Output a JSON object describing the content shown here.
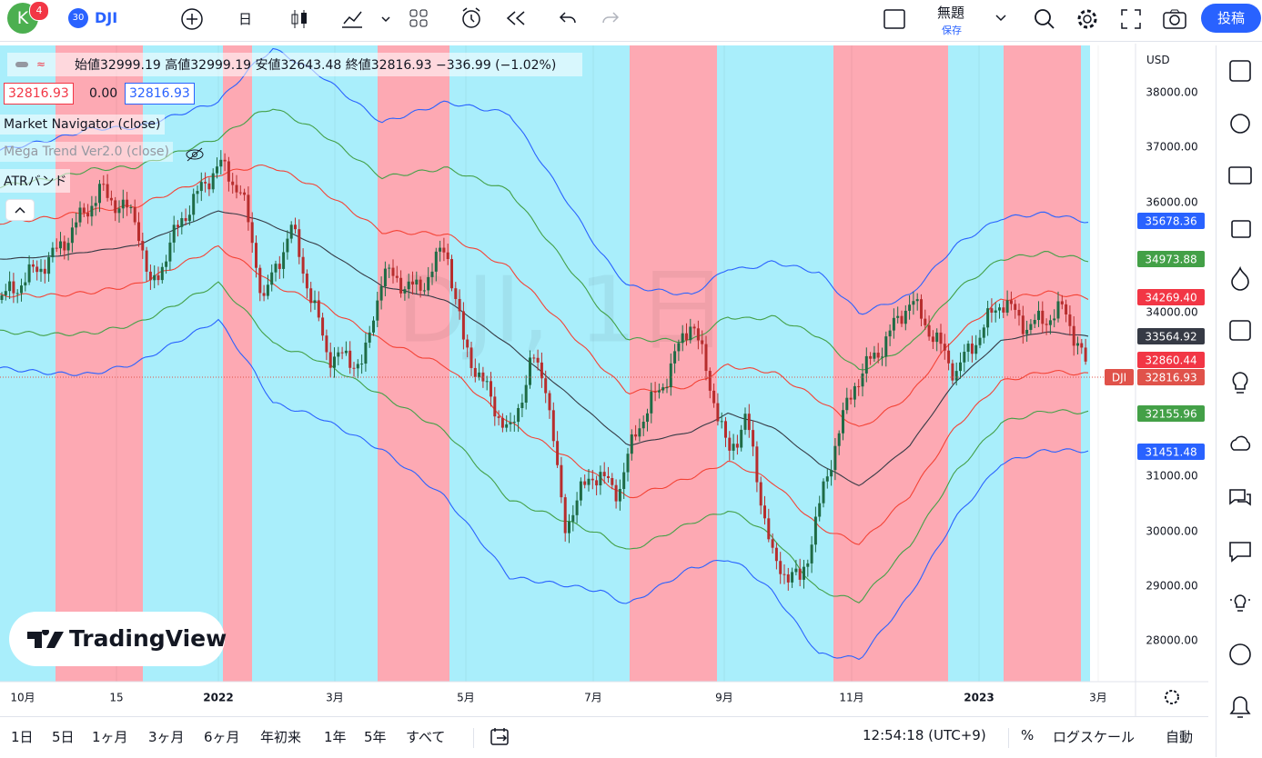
{
  "toolbar": {
    "avatar": "K",
    "badge": "4",
    "symbol_badge": "30",
    "symbol": "DJI",
    "interval": "日",
    "layout_name": "無題",
    "save": "保存",
    "publish": "投稿"
  },
  "legend": {
    "ohlc": "始値32999.19 高値32999.19 安値32643.48 終値32816.93 −336.99 (−1.02%)",
    "values": [
      "32816.93",
      "0.00",
      "32816.93"
    ],
    "indicators": [
      "Market Navigator (close)",
      "Mega Trend Ver2.0 (close)",
      "ATRバンド"
    ]
  },
  "watermark": "DJI, 1日",
  "currency": "USD",
  "price_axis": [
    "38000.00",
    "37000.00",
    "36000.00",
    "34000.00",
    "31000.00",
    "30000.00",
    "29000.00",
    "28000.00"
  ],
  "price_badges": [
    {
      "label": "35678.36",
      "color": "#2962ff"
    },
    {
      "label": "34973.88",
      "color": "#43a047"
    },
    {
      "label": "34269.40",
      "color": "#f23645"
    },
    {
      "label": "33564.92",
      "color": "#363a45"
    },
    {
      "label": "32860.44",
      "color": "#f23645"
    },
    {
      "label": "32816.93",
      "color": "#e0524a"
    },
    {
      "label": "32155.96",
      "color": "#43a047"
    },
    {
      "label": "31451.48",
      "color": "#2962ff"
    }
  ],
  "symbol_tag": "DJI",
  "time_axis": [
    "10月",
    "15",
    "2022",
    "3月",
    "5月",
    "7月",
    "9月",
    "11月",
    "2023",
    "3月"
  ],
  "ranges": [
    "1日",
    "5日",
    "1ヶ月",
    "3ヶ月",
    "6ヶ月",
    "年初来",
    "1年",
    "5年",
    "すべて"
  ],
  "clock": "12:54:18 (UTC+9)",
  "percent": "%",
  "log": "ログスケール",
  "auto": "自動",
  "logo": "TradingView"
}
